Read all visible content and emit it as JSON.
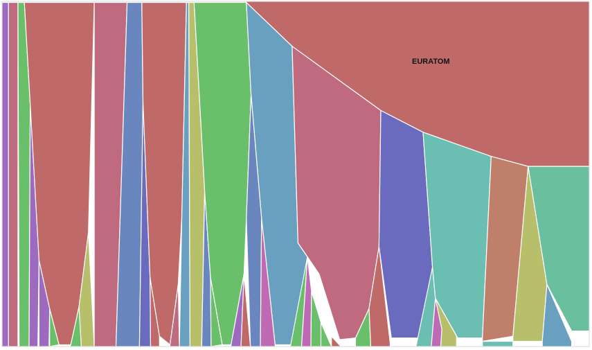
{
  "chart_data": {
    "type": "area",
    "title": "",
    "xlabel": "",
    "ylabel": "",
    "annotation": "EURATOM",
    "colors": {
      "red": "#bf6a68",
      "pink": "#bf6a7f",
      "purple": "#9e6abf",
      "violet": "#6a6abf",
      "blue": "#6a86bf",
      "steel": "#6aa0bf",
      "teal": "#6abfb2",
      "green": "#6abf6a",
      "olive": "#b8bf6a",
      "magenta": "#bf6ab4",
      "brown": "#bf7f6a",
      "seafoam": "#6abf9e"
    },
    "series": [
      {
        "name": "EURATOM",
        "color_key": "red",
        "top": [
          [
            0.416,
            0.003
          ],
          [
            0.494,
            0.13
          ],
          [
            0.645,
            0.316
          ],
          [
            0.717,
            0.379
          ],
          [
            0.833,
            0.449
          ],
          [
            0.896,
            0.478
          ],
          [
            1.0,
            0.478
          ]
        ]
      }
    ],
    "segments": [
      {
        "color_key": "purple",
        "points": [
          [
            0.0,
            0.003
          ],
          [
            0.011,
            0.003
          ],
          [
            0.011,
            1.0
          ],
          [
            0.0,
            1.0
          ]
        ]
      },
      {
        "color_key": "pink",
        "points": [
          [
            0.011,
            0.003
          ],
          [
            0.027,
            0.003
          ],
          [
            0.027,
            1.0
          ],
          [
            0.011,
            1.0
          ]
        ]
      },
      {
        "color_key": "green",
        "points": [
          [
            0.027,
            0.003
          ],
          [
            0.038,
            0.003
          ],
          [
            0.048,
            0.3
          ],
          [
            0.046,
            1.0
          ],
          [
            0.029,
            1.0
          ]
        ]
      },
      {
        "color_key": "purple",
        "points": [
          [
            0.048,
            0.3
          ],
          [
            0.063,
            0.75
          ],
          [
            0.061,
            1.0
          ],
          [
            0.046,
            1.0
          ]
        ]
      },
      {
        "color_key": "purple",
        "points": [
          [
            0.063,
            0.75
          ],
          [
            0.081,
            0.89
          ],
          [
            0.08,
            1.0
          ],
          [
            0.063,
            1.0
          ]
        ]
      },
      {
        "color_key": "green",
        "points": [
          [
            0.081,
            0.89
          ],
          [
            0.097,
            0.995
          ],
          [
            0.081,
            1.0
          ]
        ]
      },
      {
        "color_key": "red",
        "points": [
          [
            0.038,
            0.003
          ],
          [
            0.157,
            0.003
          ],
          [
            0.147,
            0.67
          ],
          [
            0.131,
            0.885
          ],
          [
            0.117,
            0.995
          ],
          [
            0.097,
            0.995
          ],
          [
            0.081,
            0.89
          ],
          [
            0.063,
            0.75
          ],
          [
            0.048,
            0.3
          ]
        ]
      },
      {
        "color_key": "green",
        "points": [
          [
            0.131,
            0.885
          ],
          [
            0.135,
            1.0
          ],
          [
            0.115,
            1.0
          ],
          [
            0.117,
            0.995
          ]
        ]
      },
      {
        "color_key": "olive",
        "points": [
          [
            0.147,
            0.67
          ],
          [
            0.157,
            1.0
          ],
          [
            0.135,
            1.0
          ],
          [
            0.131,
            0.885
          ]
        ]
      },
      {
        "color_key": "pink",
        "points": [
          [
            0.157,
            0.003
          ],
          [
            0.213,
            0.003
          ],
          [
            0.194,
            1.0
          ],
          [
            0.157,
            1.0
          ]
        ]
      },
      {
        "color_key": "blue",
        "points": [
          [
            0.213,
            0.003
          ],
          [
            0.238,
            0.003
          ],
          [
            0.24,
            0.29
          ],
          [
            0.234,
            1.0
          ],
          [
            0.194,
            1.0
          ]
        ]
      },
      {
        "color_key": "violet",
        "points": [
          [
            0.24,
            0.29
          ],
          [
            0.252,
            0.8
          ],
          [
            0.253,
            1.0
          ],
          [
            0.234,
            1.0
          ]
        ]
      },
      {
        "color_key": "red",
        "points": [
          [
            0.252,
            0.8
          ],
          [
            0.268,
            0.97
          ],
          [
            0.268,
            1.0
          ],
          [
            0.253,
            1.0
          ]
        ]
      },
      {
        "color_key": "red",
        "points": [
          [
            0.238,
            0.003
          ],
          [
            0.314,
            0.003
          ],
          [
            0.306,
            0.63
          ],
          [
            0.3,
            0.82
          ],
          [
            0.286,
            0.995
          ],
          [
            0.268,
            0.97
          ],
          [
            0.252,
            0.8
          ],
          [
            0.24,
            0.29
          ]
        ]
      },
      {
        "color_key": "pink",
        "points": [
          [
            0.3,
            0.82
          ],
          [
            0.302,
            1.0
          ],
          [
            0.286,
            1.0
          ],
          [
            0.286,
            0.995
          ]
        ]
      },
      {
        "color_key": "steel",
        "points": [
          [
            0.314,
            0.003
          ],
          [
            0.318,
            0.003
          ],
          [
            0.32,
            1.0
          ],
          [
            0.302,
            1.0
          ],
          [
            0.306,
            0.63
          ]
        ]
      },
      {
        "color_key": "olive",
        "points": [
          [
            0.318,
            0.003
          ],
          [
            0.327,
            0.003
          ],
          [
            0.345,
            0.55
          ],
          [
            0.34,
            1.0
          ],
          [
            0.32,
            1.0
          ]
        ]
      },
      {
        "color_key": "blue",
        "points": [
          [
            0.345,
            0.55
          ],
          [
            0.355,
            0.8
          ],
          [
            0.356,
            1.0
          ],
          [
            0.34,
            1.0
          ]
        ]
      },
      {
        "color_key": "green",
        "points": [
          [
            0.355,
            0.8
          ],
          [
            0.375,
            0.995
          ],
          [
            0.356,
            1.0
          ]
        ]
      },
      {
        "color_key": "green",
        "points": [
          [
            0.327,
            0.003
          ],
          [
            0.416,
            0.003
          ],
          [
            0.424,
            0.27
          ],
          [
            0.416,
            0.63
          ],
          [
            0.412,
            0.79
          ],
          [
            0.39,
            0.995
          ],
          [
            0.375,
            0.995
          ],
          [
            0.355,
            0.8
          ],
          [
            0.345,
            0.55
          ]
        ]
      },
      {
        "color_key": "purple",
        "points": [
          [
            0.412,
            0.79
          ],
          [
            0.407,
            1.0
          ],
          [
            0.39,
            1.0
          ],
          [
            0.39,
            0.995
          ]
        ]
      },
      {
        "color_key": "red",
        "points": [
          [
            0.412,
            0.79
          ],
          [
            0.423,
            1.0
          ],
          [
            0.407,
            1.0
          ]
        ]
      },
      {
        "color_key": "steel",
        "points": [
          [
            0.416,
            0.003
          ],
          [
            0.494,
            0.13
          ],
          [
            0.504,
            0.7
          ],
          [
            0.52,
            0.74
          ],
          [
            0.5,
            0.995
          ],
          [
            0.465,
            0.995
          ],
          [
            0.442,
            0.63
          ],
          [
            0.424,
            0.27
          ]
        ]
      },
      {
        "color_key": "blue",
        "points": [
          [
            0.424,
            0.27
          ],
          [
            0.442,
            0.63
          ],
          [
            0.44,
            1.0
          ],
          [
            0.423,
            1.0
          ],
          [
            0.416,
            0.63
          ]
        ]
      },
      {
        "color_key": "magenta",
        "points": [
          [
            0.442,
            0.63
          ],
          [
            0.465,
            0.995
          ],
          [
            0.465,
            1.0
          ],
          [
            0.44,
            1.0
          ]
        ]
      },
      {
        "color_key": "green",
        "points": [
          [
            0.52,
            0.74
          ],
          [
            0.51,
            1.0
          ],
          [
            0.491,
            1.0
          ]
        ]
      },
      {
        "color_key": "magenta",
        "points": [
          [
            0.52,
            0.74
          ],
          [
            0.527,
            0.84
          ],
          [
            0.526,
            1.0
          ],
          [
            0.51,
            1.0
          ]
        ]
      },
      {
        "color_key": "green",
        "points": [
          [
            0.527,
            0.84
          ],
          [
            0.543,
            0.93
          ],
          [
            0.543,
            1.0
          ],
          [
            0.526,
            1.0
          ]
        ]
      },
      {
        "color_key": "green",
        "points": [
          [
            0.543,
            0.93
          ],
          [
            0.561,
            1.0
          ],
          [
            0.543,
            1.0
          ]
        ]
      },
      {
        "color_key": "red",
        "points": [
          [
            0.561,
            0.97
          ],
          [
            0.577,
            1.0
          ],
          [
            0.561,
            1.0
          ]
        ]
      },
      {
        "color_key": "pink",
        "points": [
          [
            0.494,
            0.13
          ],
          [
            0.645,
            0.316
          ],
          [
            0.642,
            0.71
          ],
          [
            0.625,
            0.89
          ],
          [
            0.602,
            0.975
          ],
          [
            0.575,
            0.98
          ],
          [
            0.54,
            0.79
          ],
          [
            0.52,
            0.74
          ],
          [
            0.504,
            0.7
          ]
        ]
      },
      {
        "color_key": "green",
        "points": [
          [
            0.625,
            0.89
          ],
          [
            0.628,
            1.0
          ],
          [
            0.602,
            1.0
          ],
          [
            0.602,
            0.975
          ]
        ]
      },
      {
        "color_key": "red",
        "points": [
          [
            0.642,
            0.71
          ],
          [
            0.661,
            0.99
          ],
          [
            0.661,
            1.0
          ],
          [
            0.628,
            1.0
          ],
          [
            0.625,
            0.89
          ]
        ]
      },
      {
        "color_key": "violet",
        "points": [
          [
            0.645,
            0.316
          ],
          [
            0.717,
            0.379
          ],
          [
            0.733,
            0.77
          ],
          [
            0.716,
            0.975
          ],
          [
            0.663,
            0.975
          ],
          [
            0.642,
            0.71
          ]
        ]
      },
      {
        "color_key": "teal",
        "points": [
          [
            0.733,
            0.77
          ],
          [
            0.738,
            0.86
          ],
          [
            0.731,
            1.0
          ],
          [
            0.705,
            1.0
          ]
        ]
      },
      {
        "color_key": "magenta",
        "points": [
          [
            0.738,
            0.86
          ],
          [
            0.749,
            0.95
          ],
          [
            0.747,
            1.0
          ],
          [
            0.731,
            1.0
          ]
        ]
      },
      {
        "color_key": "olive",
        "points": [
          [
            0.738,
            0.86
          ],
          [
            0.774,
            0.97
          ],
          [
            0.774,
            1.0
          ],
          [
            0.747,
            1.0
          ],
          [
            0.749,
            0.95
          ]
        ]
      },
      {
        "color_key": "teal",
        "points": [
          [
            0.717,
            0.379
          ],
          [
            0.833,
            0.449
          ],
          [
            0.818,
            0.975
          ],
          [
            0.776,
            0.975
          ],
          [
            0.738,
            0.86
          ],
          [
            0.733,
            0.77
          ]
        ]
      },
      {
        "color_key": "brown",
        "points": [
          [
            0.833,
            0.449
          ],
          [
            0.896,
            0.478
          ],
          [
            0.87,
            0.97
          ],
          [
            0.818,
            0.985
          ],
          [
            0.818,
            0.975
          ]
        ]
      },
      {
        "color_key": "olive",
        "points": [
          [
            0.896,
            0.478
          ],
          [
            0.928,
            0.82
          ],
          [
            0.92,
            0.985
          ],
          [
            0.87,
            0.985
          ],
          [
            0.87,
            0.97
          ]
        ]
      },
      {
        "color_key": "steel",
        "points": [
          [
            0.928,
            0.82
          ],
          [
            0.97,
            0.985
          ],
          [
            0.97,
            1.0
          ],
          [
            0.92,
            1.0
          ],
          [
            0.92,
            0.985
          ]
        ]
      },
      {
        "color_key": "seafoam",
        "points": [
          [
            0.896,
            0.478
          ],
          [
            1.0,
            0.478
          ],
          [
            1.0,
            0.955
          ],
          [
            0.97,
            0.955
          ],
          [
            0.928,
            0.82
          ]
        ]
      },
      {
        "color_key": "teal",
        "points": [
          [
            0.818,
            0.985
          ],
          [
            0.87,
            0.985
          ],
          [
            0.87,
            1.0
          ],
          [
            0.818,
            1.0
          ]
        ]
      }
    ]
  }
}
